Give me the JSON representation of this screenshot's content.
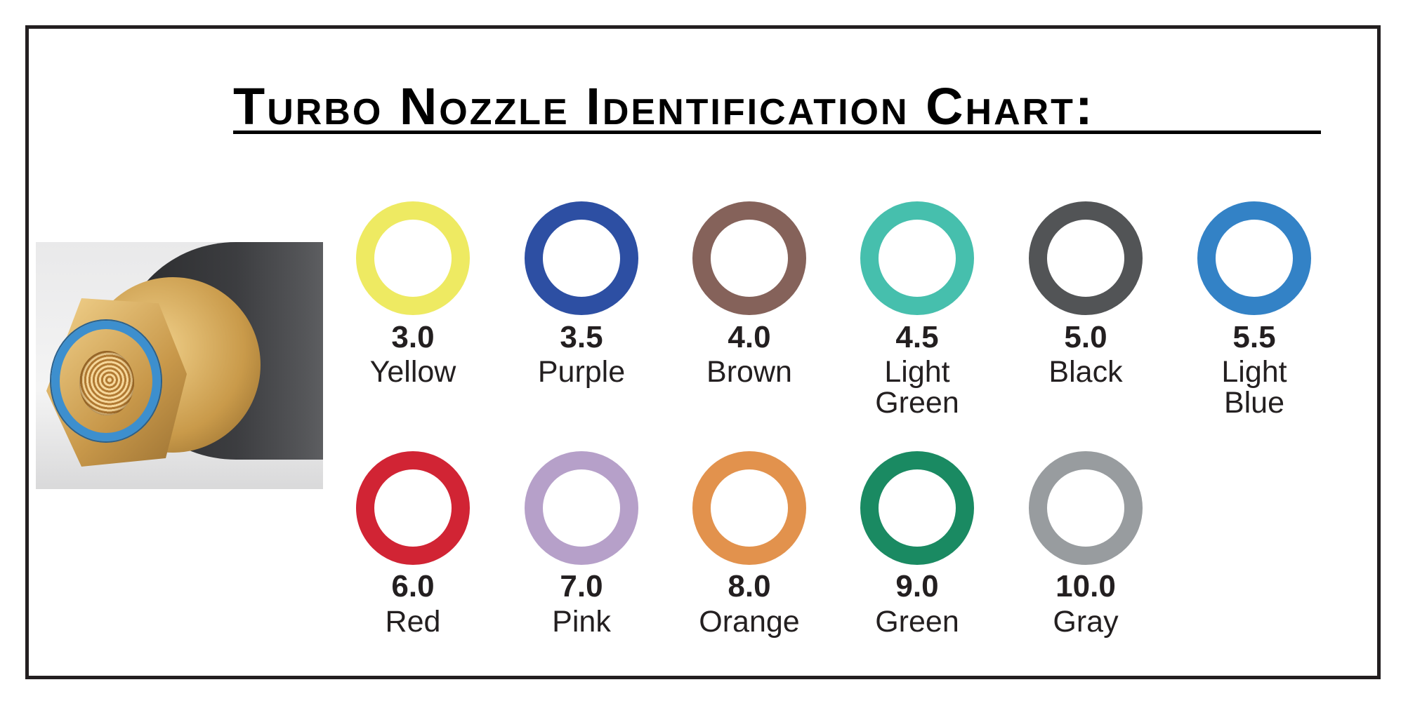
{
  "title": "Turbo Nozzle Identification Chart:",
  "photo": {
    "icon": "turbo-nozzle-photo",
    "ring_color": "#3D8FCE"
  },
  "nozzles": [
    {
      "size": "3.0",
      "name_lines": [
        "Yellow"
      ],
      "color": "#EEEA62"
    },
    {
      "size": "3.5",
      "name_lines": [
        "Purple"
      ],
      "color": "#2D4FA3"
    },
    {
      "size": "4.0",
      "name_lines": [
        "Brown"
      ],
      "color": "#85625A"
    },
    {
      "size": "4.5",
      "name_lines": [
        "Light",
        "Green"
      ],
      "color": "#46BFAD"
    },
    {
      "size": "5.0",
      "name_lines": [
        "Black"
      ],
      "color": "#525456"
    },
    {
      "size": "5.5",
      "name_lines": [
        "Light",
        "Blue"
      ],
      "color": "#3382C6"
    },
    {
      "size": "6.0",
      "name_lines": [
        "Red"
      ],
      "color": "#D12434"
    },
    {
      "size": "7.0",
      "name_lines": [
        "Pink"
      ],
      "color": "#B6A0C9"
    },
    {
      "size": "8.0",
      "name_lines": [
        "Orange"
      ],
      "color": "#E2924D"
    },
    {
      "size": "9.0",
      "name_lines": [
        "Green"
      ],
      "color": "#1A8A62"
    },
    {
      "size": "10.0",
      "name_lines": [
        "Gray"
      ],
      "color": "#989C9F"
    }
  ]
}
